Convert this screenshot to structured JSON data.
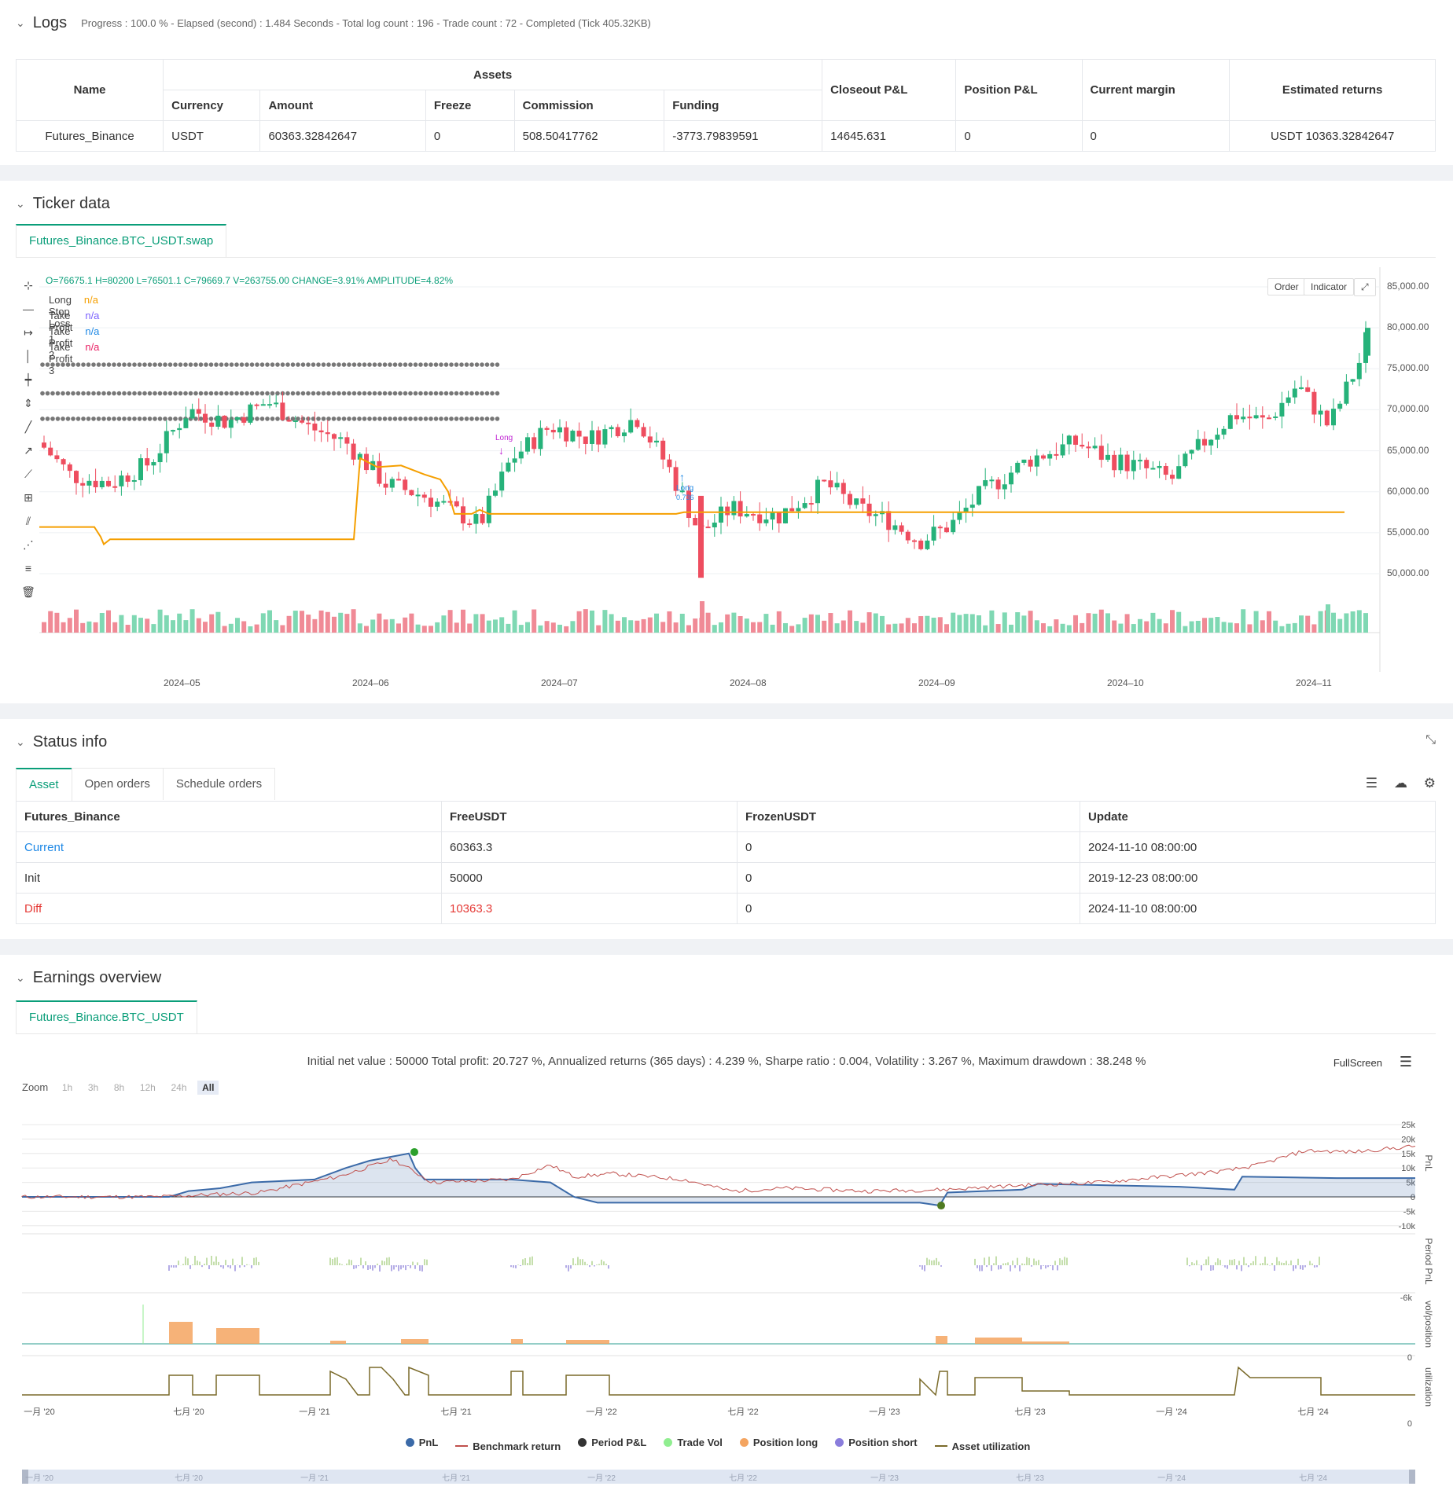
{
  "logs": {
    "title": "Logs",
    "progress": "Progress : 100.0 % - Elapsed (second) : 1.484  Seconds - Total log count : 196 - Trade count : 72 - Completed (Tick 405.32KB)",
    "headers": {
      "name": "Name",
      "assets": "Assets",
      "currency": "Currency",
      "amount": "Amount",
      "freeze": "Freeze",
      "commission": "Commission",
      "funding": "Funding",
      "closeout": "Closeout P&L",
      "position": "Position P&L",
      "margin": "Current margin",
      "returns": "Estimated returns"
    },
    "row": {
      "name": "Futures_Binance",
      "currency": "USDT",
      "amount": "60363.32842647",
      "freeze": "0",
      "commission": "508.50417762",
      "funding": "-3773.79839591",
      "closeout": "14645.631",
      "position": "0",
      "margin": "0",
      "returns": "USDT 10363.32842647"
    }
  },
  "ticker": {
    "title": "Ticker data",
    "tab": "Futures_Binance.BTC_USDT.swap",
    "ohlc": "O=76675.1  H=80200  L=76501.1  C=79669.7  V=263755.00  CHANGE=3.91%  AMPLITUDE=4.82%",
    "legend": [
      {
        "name": "Long Stop Loss",
        "value": "n/a",
        "color": "#f59f00"
      },
      {
        "name": "Take Profit 1",
        "value": "n/a",
        "color": "#7b61ff"
      },
      {
        "name": "Take Profit 2",
        "value": "n/a",
        "color": "#1e88e5"
      },
      {
        "name": "Take Profit 3",
        "value": "n/a",
        "color": "#e91e63"
      }
    ],
    "buttons": {
      "order": "Order",
      "indicator": "Indicator"
    },
    "y_ticks": [
      "85,000.00",
      "80,000.00",
      "75,000.00",
      "70,000.00",
      "65,000.00",
      "60,000.00",
      "55,000.00",
      "50,000.00"
    ],
    "x_ticks": [
      "2024–05",
      "2024–06",
      "2024–07",
      "2024–08",
      "2024–09",
      "2024–10",
      "2024–11"
    ],
    "markers": {
      "long1": "Long",
      "long2": "Long",
      "long2_sub": "0.736"
    }
  },
  "status": {
    "title": "Status info",
    "tabs": [
      "Asset",
      "Open orders",
      "Schedule orders"
    ],
    "headers": [
      "Futures_Binance",
      "FreeUSDT",
      "FrozenUSDT",
      "Update"
    ],
    "rows": [
      {
        "label": "Current",
        "free": "60363.3",
        "frozen": "0",
        "update": "2024-11-10 08:00:00",
        "color": "#1e88e5"
      },
      {
        "label": "Init",
        "free": "50000",
        "frozen": "0",
        "update": "2019-12-23 08:00:00",
        "color": "#333333"
      },
      {
        "label": "Diff",
        "free": "10363.3",
        "frozen": "0",
        "update": "2024-11-10 08:00:00",
        "color": "#e53935"
      }
    ]
  },
  "earnings": {
    "title": "Earnings overview",
    "tab": "Futures_Binance.BTC_USDT",
    "summary": "Initial net value : 50000 Total profit: 20.727 %, Annualized returns (365 days) : 4.239 %, Sharpe ratio : 0.004, Volatility : 3.267 %, Maximum drawdown : 38.248 %",
    "fullscreen": "FullScreen",
    "zoom_label": "Zoom",
    "zoom": [
      "1h",
      "3h",
      "8h",
      "12h",
      "24h",
      "All"
    ],
    "pnl_ticks": [
      "25k",
      "20k",
      "15k",
      "10k",
      "5k",
      "0",
      "-5k",
      "-10k"
    ],
    "axis_titles": [
      "PnL",
      "Period PnL",
      "vol/position",
      "utilization"
    ],
    "period_tick": "-6k",
    "vol_tick": "0",
    "util_tick": "0",
    "x_ticks": [
      "一月 '20",
      "七月 '20",
      "一月 '21",
      "七月 '21",
      "一月 '22",
      "七月 '22",
      "一月 '23",
      "七月 '23",
      "一月 '24",
      "七月 '24"
    ],
    "legend": [
      {
        "name": "PnL",
        "color": "#3b6aa8",
        "shape": "dot"
      },
      {
        "name": "Benchmark return",
        "color": "#c0504d",
        "shape": "line"
      },
      {
        "name": "Period P&L",
        "color": "#333333",
        "shape": "dot"
      },
      {
        "name": "Trade Vol",
        "color": "#90ee90",
        "shape": "dot"
      },
      {
        "name": "Position long",
        "color": "#f4a460",
        "shape": "dot"
      },
      {
        "name": "Position short",
        "color": "#8a7ddc",
        "shape": "dot"
      },
      {
        "name": "Asset utilization",
        "color": "#7a6a2a",
        "shape": "line"
      }
    ]
  }
}
